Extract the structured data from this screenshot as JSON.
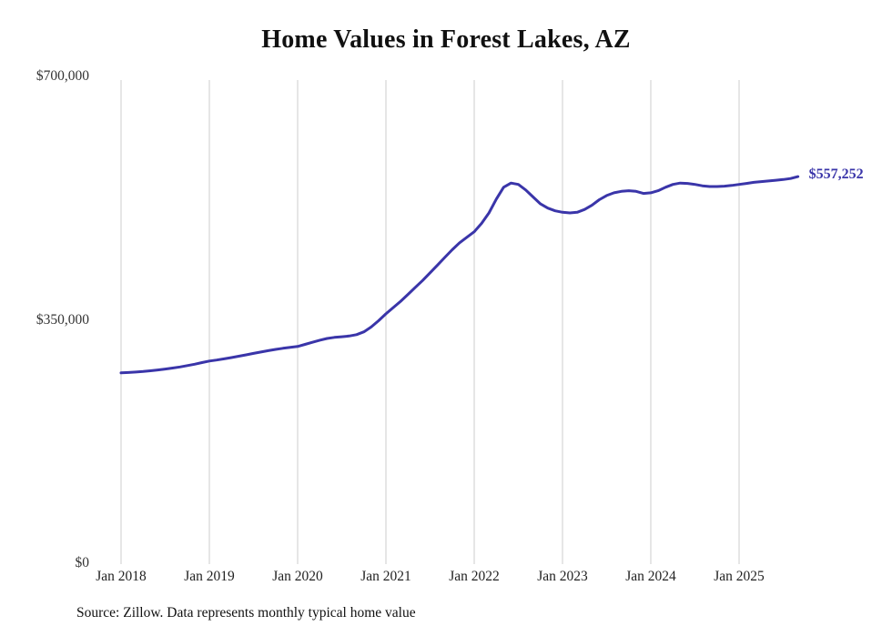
{
  "title": "Home Values in Forest Lakes, AZ",
  "end_label": "$557,252",
  "source_note": "Source: Zillow. Data represents monthly typical home value",
  "colors": {
    "line": "#3a35a9",
    "grid": "#cccccc",
    "axis_text": "#333333",
    "title_text": "#111111"
  },
  "chart_data": {
    "type": "line",
    "title": "Home Values in Forest Lakes, AZ",
    "xlabel": "",
    "ylabel": "",
    "ylim": [
      0,
      700000
    ],
    "grid": "vertical",
    "x_start": "2018-01",
    "x_interval": "month",
    "x_tick_labels": [
      "Jan 2018",
      "Jan 2019",
      "Jan 2020",
      "Jan 2021",
      "Jan 2022",
      "Jan 2023",
      "Jan 2024",
      "Jan 2025"
    ],
    "y_ticks": [
      {
        "value": 0,
        "label": "$0"
      },
      {
        "value": 350000,
        "label": "$350,000"
      },
      {
        "value": 700000,
        "label": "$700,000"
      }
    ],
    "last_value": 557252,
    "series": [
      {
        "name": "Monthly typical home value",
        "values": [
          275000,
          275500,
          276200,
          277000,
          278000,
          279200,
          280500,
          282000,
          283500,
          285500,
          287500,
          289800,
          292000,
          293500,
          295200,
          297000,
          299000,
          301000,
          303000,
          305000,
          307000,
          308800,
          310300,
          311700,
          313000,
          316000,
          319000,
          322000,
          324500,
          326000,
          327000,
          328000,
          330000,
          334000,
          341000,
          350000,
          360000,
          369000,
          378000,
          388000,
          398000,
          408000,
          419000,
          430000,
          441000,
          452000,
          462000,
          470000,
          478000,
          490000,
          505000,
          525000,
          542000,
          548000,
          546000,
          538000,
          528000,
          518000,
          512000,
          508000,
          506000,
          505000,
          506000,
          510000,
          516000,
          524000,
          530000,
          534000,
          536000,
          537000,
          536000,
          533000,
          534000,
          537000,
          542000,
          546000,
          548000,
          547500,
          546000,
          544000,
          543000,
          543000,
          543500,
          544500,
          546000,
          547500,
          549000,
          550000,
          551000,
          552000,
          553000,
          554500,
          557252
        ]
      }
    ]
  }
}
